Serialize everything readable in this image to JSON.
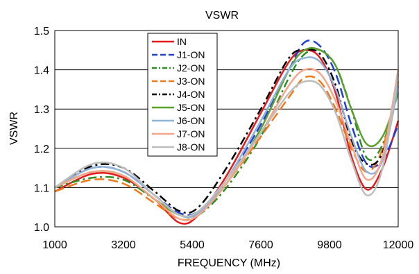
{
  "chart_data": {
    "type": "line",
    "title": "VSWR",
    "xlabel": "FREQUENCY (MHz)",
    "ylabel": "VSWR",
    "xlim": [
      1000,
      12000
    ],
    "ylim": [
      1.0,
      1.5
    ],
    "xticks": [
      1000,
      3200,
      5400,
      7600,
      9800,
      12000
    ],
    "yticks": [
      1.0,
      1.1,
      1.2,
      1.3,
      1.4,
      1.5
    ],
    "xtick_labels": [
      "1000",
      "3200",
      "5400",
      "7600",
      "9800",
      "12000"
    ],
    "ytick_labels": [
      "1.0",
      "1.1",
      "1.2",
      "1.3",
      "1.4",
      "1.5"
    ],
    "grid": "horizontal",
    "legend_position": "top-center",
    "series": [
      {
        "name": "IN",
        "color": "#e41a1c",
        "dash": "solid",
        "points": [
          [
            1000,
            1.09
          ],
          [
            2200,
            1.135
          ],
          [
            3200,
            1.125
          ],
          [
            4200,
            1.07
          ],
          [
            5000,
            1.01
          ],
          [
            5600,
            1.03
          ],
          [
            6500,
            1.13
          ],
          [
            7600,
            1.29
          ],
          [
            8500,
            1.42
          ],
          [
            9000,
            1.45
          ],
          [
            9500,
            1.43
          ],
          [
            10000,
            1.34
          ],
          [
            10500,
            1.18
          ],
          [
            11000,
            1.095
          ],
          [
            11500,
            1.15
          ],
          [
            12000,
            1.27
          ]
        ]
      },
      {
        "name": "J1-ON",
        "color": "#1f3fd6",
        "dash": "long-dash",
        "points": [
          [
            1000,
            1.1
          ],
          [
            2200,
            1.15
          ],
          [
            3200,
            1.14
          ],
          [
            4200,
            1.08
          ],
          [
            5000,
            1.035
          ],
          [
            5600,
            1.04
          ],
          [
            6500,
            1.12
          ],
          [
            7600,
            1.26
          ],
          [
            8500,
            1.4
          ],
          [
            9000,
            1.47
          ],
          [
            9500,
            1.46
          ],
          [
            10000,
            1.39
          ],
          [
            10500,
            1.26
          ],
          [
            11000,
            1.16
          ],
          [
            11500,
            1.17
          ],
          [
            12000,
            1.26
          ]
        ]
      },
      {
        "name": "J2-ON",
        "color": "#2f8f1f",
        "dash": "dash-dot",
        "points": [
          [
            1000,
            1.1
          ],
          [
            2200,
            1.125
          ],
          [
            3200,
            1.12
          ],
          [
            4200,
            1.07
          ],
          [
            5000,
            1.03
          ],
          [
            5600,
            1.03
          ],
          [
            6500,
            1.1
          ],
          [
            7600,
            1.23
          ],
          [
            8500,
            1.38
          ],
          [
            9000,
            1.44
          ],
          [
            9500,
            1.45
          ],
          [
            10000,
            1.41
          ],
          [
            10500,
            1.3
          ],
          [
            11000,
            1.175
          ],
          [
            11500,
            1.21
          ],
          [
            12000,
            1.35
          ]
        ]
      },
      {
        "name": "J3-ON",
        "color": "#f07a1a",
        "dash": "long-dash",
        "points": [
          [
            1000,
            1.09
          ],
          [
            2200,
            1.12
          ],
          [
            3200,
            1.11
          ],
          [
            4200,
            1.06
          ],
          [
            5000,
            1.02
          ],
          [
            5600,
            1.03
          ],
          [
            6500,
            1.11
          ],
          [
            7600,
            1.23
          ],
          [
            8500,
            1.33
          ],
          [
            9000,
            1.38
          ],
          [
            9500,
            1.37
          ],
          [
            10000,
            1.3
          ],
          [
            10500,
            1.2
          ],
          [
            11000,
            1.14
          ],
          [
            11500,
            1.2
          ],
          [
            12000,
            1.37
          ]
        ]
      },
      {
        "name": "J4-ON",
        "color": "#000000",
        "dash": "dash-dot",
        "points": [
          [
            1000,
            1.1
          ],
          [
            2200,
            1.155
          ],
          [
            3200,
            1.15
          ],
          [
            4200,
            1.09
          ],
          [
            5000,
            1.04
          ],
          [
            5600,
            1.05
          ],
          [
            6500,
            1.15
          ],
          [
            7600,
            1.3
          ],
          [
            8500,
            1.43
          ],
          [
            9000,
            1.45
          ],
          [
            9500,
            1.44
          ],
          [
            10000,
            1.36
          ],
          [
            10500,
            1.22
          ],
          [
            11000,
            1.16
          ],
          [
            11500,
            1.19
          ],
          [
            12000,
            1.36
          ]
        ]
      },
      {
        "name": "J5-ON",
        "color": "#5aa02c",
        "dash": "solid",
        "points": [
          [
            1000,
            1.1
          ],
          [
            2200,
            1.14
          ],
          [
            3200,
            1.13
          ],
          [
            4200,
            1.07
          ],
          [
            5000,
            1.03
          ],
          [
            5600,
            1.035
          ],
          [
            6500,
            1.11
          ],
          [
            7600,
            1.25
          ],
          [
            8500,
            1.4
          ],
          [
            9000,
            1.45
          ],
          [
            9500,
            1.45
          ],
          [
            10000,
            1.41
          ],
          [
            10500,
            1.3
          ],
          [
            11000,
            1.21
          ],
          [
            11500,
            1.23
          ],
          [
            12000,
            1.34
          ]
        ]
      },
      {
        "name": "J6-ON",
        "color": "#8fb2d8",
        "dash": "solid",
        "points": [
          [
            1000,
            1.1
          ],
          [
            2200,
            1.15
          ],
          [
            3200,
            1.14
          ],
          [
            4200,
            1.08
          ],
          [
            5000,
            1.03
          ],
          [
            5600,
            1.035
          ],
          [
            6500,
            1.12
          ],
          [
            7600,
            1.27
          ],
          [
            8500,
            1.4
          ],
          [
            9000,
            1.43
          ],
          [
            9500,
            1.42
          ],
          [
            10000,
            1.35
          ],
          [
            10500,
            1.23
          ],
          [
            11000,
            1.14
          ],
          [
            11500,
            1.17
          ],
          [
            12000,
            1.36
          ]
        ]
      },
      {
        "name": "J7-ON",
        "color": "#f4a58a",
        "dash": "solid",
        "points": [
          [
            1000,
            1.1
          ],
          [
            2200,
            1.14
          ],
          [
            3200,
            1.13
          ],
          [
            4200,
            1.07
          ],
          [
            5000,
            1.02
          ],
          [
            5600,
            1.03
          ],
          [
            6500,
            1.11
          ],
          [
            7600,
            1.24
          ],
          [
            8500,
            1.36
          ],
          [
            9000,
            1.4
          ],
          [
            9500,
            1.39
          ],
          [
            10000,
            1.32
          ],
          [
            10500,
            1.21
          ],
          [
            11000,
            1.12
          ],
          [
            11500,
            1.18
          ],
          [
            12000,
            1.4
          ]
        ]
      },
      {
        "name": "J8-ON",
        "color": "#bdbdbd",
        "dash": "solid",
        "points": [
          [
            1000,
            1.1
          ],
          [
            2200,
            1.16
          ],
          [
            3200,
            1.15
          ],
          [
            4200,
            1.08
          ],
          [
            5000,
            1.03
          ],
          [
            5600,
            1.04
          ],
          [
            6500,
            1.12
          ],
          [
            7600,
            1.24
          ],
          [
            8500,
            1.34
          ],
          [
            9000,
            1.37
          ],
          [
            9500,
            1.36
          ],
          [
            10000,
            1.29
          ],
          [
            10500,
            1.17
          ],
          [
            11000,
            1.08
          ],
          [
            11500,
            1.15
          ],
          [
            12000,
            1.39
          ]
        ]
      }
    ]
  }
}
